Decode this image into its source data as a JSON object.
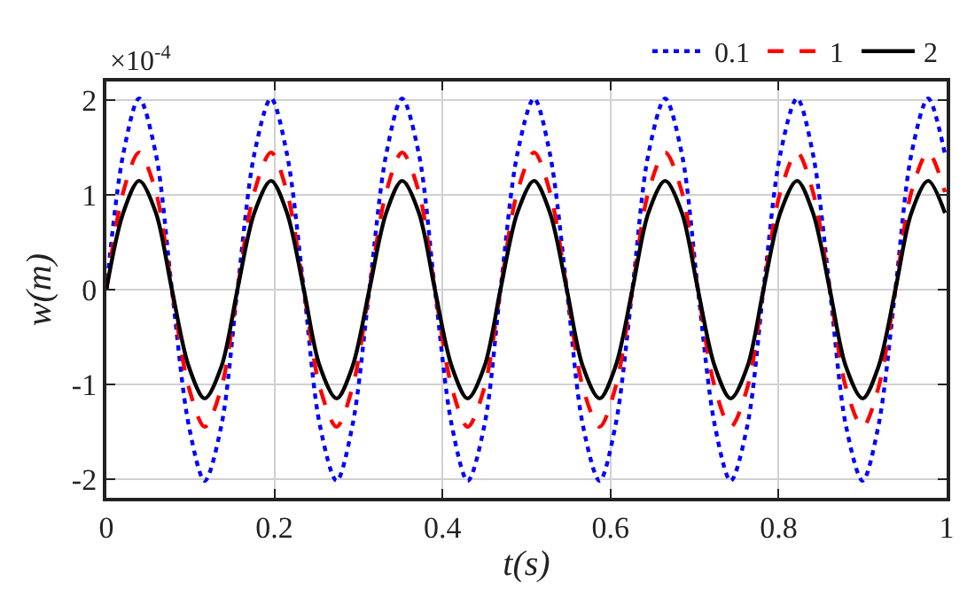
{
  "chart_data": {
    "type": "line",
    "xlabel": "t(s)",
    "ylabel": "w(m)",
    "annotations": [
      "×10$^{-4}$"
    ],
    "x": [
      0,
      0.02,
      0.039,
      0.059,
      0.078,
      0.098,
      0.117,
      0.137,
      0.156,
      0.176,
      0.196,
      0.215,
      0.235,
      0.254,
      0.274,
      0.293,
      0.313,
      0.333,
      0.352,
      0.372,
      0.391,
      0.411,
      0.43,
      0.45,
      0.469,
      0.489,
      0.509,
      0.528,
      0.548,
      0.567,
      0.587,
      0.606,
      0.626,
      0.645,
      0.665,
      0.685,
      0.704,
      0.724,
      0.743,
      0.763,
      0.782,
      0.802,
      0.822,
      0.841,
      0.861,
      0.88,
      0.9,
      0.919,
      0.939,
      0.958,
      0.978,
      0.998
    ],
    "series": [
      {
        "name": "0.1",
        "color": "#0000ff",
        "line_style": "dotted",
        "values": [
          0,
          1.43,
          2.02,
          1.43,
          0,
          -1.43,
          -2.02,
          -1.43,
          0,
          1.43,
          2.02,
          1.43,
          0,
          -1.43,
          -2.02,
          -1.43,
          0,
          1.43,
          2.02,
          1.43,
          0,
          -1.43,
          -2.02,
          -1.43,
          0,
          1.43,
          2.02,
          1.43,
          0,
          -1.43,
          -2.02,
          -1.43,
          0,
          1.43,
          2.02,
          1.43,
          0,
          -1.43,
          -2.02,
          -1.43,
          0,
          1.43,
          2.02,
          1.43,
          0,
          -1.43,
          -2.02,
          -1.43,
          0,
          1.43,
          2.02,
          1.43
        ]
      },
      {
        "name": "1",
        "color": "#ff0000",
        "line_style": "dashed",
        "values": [
          0,
          1.03,
          1.45,
          1.03,
          0,
          -1.03,
          -1.45,
          -1.03,
          0,
          1.03,
          1.45,
          1.03,
          0,
          -1.03,
          -1.45,
          -1.03,
          0,
          1.03,
          1.45,
          1.03,
          0,
          -1.03,
          -1.45,
          -1.03,
          0,
          1.03,
          1.45,
          1.03,
          0,
          -1.03,
          -1.45,
          -1.03,
          0,
          1.03,
          1.45,
          1.03,
          0,
          -1.03,
          -1.45,
          -1.03,
          0,
          1.03,
          1.45,
          1.03,
          0,
          -1.03,
          -1.45,
          -1.03,
          0,
          1.03,
          1.45,
          1.03
        ]
      },
      {
        "name": "2",
        "color": "#000000",
        "line_style": "solid",
        "values": [
          0,
          0.81,
          1.15,
          0.81,
          0,
          -0.81,
          -1.15,
          -0.81,
          0,
          0.81,
          1.15,
          0.81,
          0,
          -0.81,
          -1.15,
          -0.81,
          0,
          0.81,
          1.15,
          0.81,
          0,
          -0.81,
          -1.15,
          -0.81,
          0,
          0.81,
          1.15,
          0.81,
          0,
          -0.81,
          -1.15,
          -0.81,
          0,
          0.81,
          1.15,
          0.81,
          0,
          -0.81,
          -1.15,
          -0.81,
          0,
          0.81,
          1.15,
          0.81,
          0,
          -0.81,
          -1.15,
          -0.81,
          0,
          0.81,
          1.15,
          0.81
        ]
      }
    ],
    "xlim": [
      0,
      1
    ],
    "xticks": [
      0,
      0.2,
      0.4,
      0.6,
      0.8,
      1
    ],
    "ylim": [
      -2.2,
      2.2
    ],
    "yticks": [
      -2,
      -1,
      0,
      1,
      2
    ],
    "grid": true,
    "legend": "top right",
    "marker": "none"
  }
}
